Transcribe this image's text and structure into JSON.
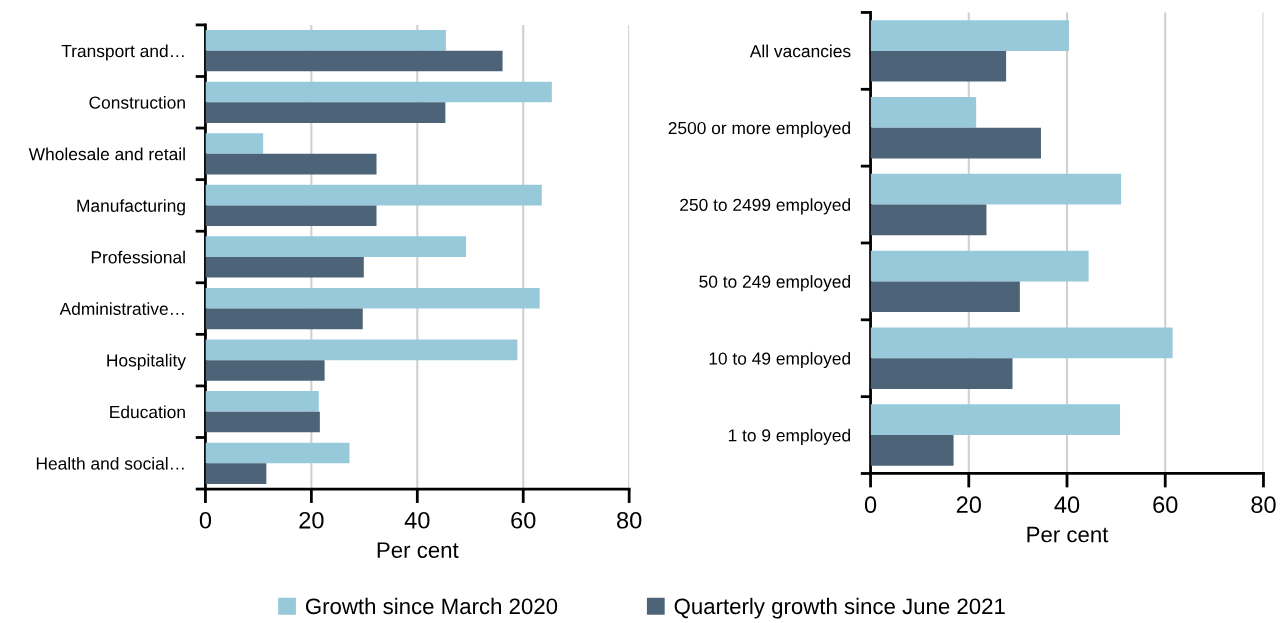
{
  "chart_data": [
    {
      "type": "bar",
      "orientation": "horizontal",
      "xlabel": "Per cent",
      "categories": [
        "Transport and…",
        "Construction",
        "Wholesale and retail",
        "Manufacturing",
        "Professional",
        "Administrative…",
        "Hospitality",
        "Education",
        "Health and social…"
      ],
      "series": [
        {
          "name": "Growth since March 2020",
          "color": "#97c9db",
          "values": [
            45.4,
            65.4,
            10.9,
            63.5,
            49.2,
            63.1,
            58.9,
            21.4,
            27.2
          ]
        },
        {
          "name": "Quarterly growth since June 2021",
          "color": "#4d6478",
          "values": [
            56.1,
            45.3,
            32.3,
            32.3,
            29.9,
            29.7,
            22.5,
            21.6,
            11.5
          ]
        }
      ],
      "xlim": [
        0,
        80
      ],
      "xticks": [
        0,
        20,
        40,
        60,
        80
      ],
      "grid": "x",
      "legend": "bottom"
    },
    {
      "type": "bar",
      "orientation": "horizontal",
      "xlabel": "Per cent",
      "categories": [
        "All vacancies",
        "2500 or more employed",
        "250 to 2499 employed",
        "50 to 249 employed",
        "10 to 49 employed",
        "1 to 9 employed"
      ],
      "series": [
        {
          "color": "#97c9db",
          "values": [
            40.4,
            21.5,
            51.0,
            44.4,
            61.5,
            50.8
          ]
        },
        {
          "color": "#4d6478",
          "values": [
            27.6,
            34.7,
            23.6,
            30.4,
            28.9,
            16.9
          ]
        }
      ],
      "xlim": [
        0,
        80
      ],
      "xticks": [
        0,
        20,
        40,
        60,
        80
      ],
      "grid": "x"
    }
  ]
}
